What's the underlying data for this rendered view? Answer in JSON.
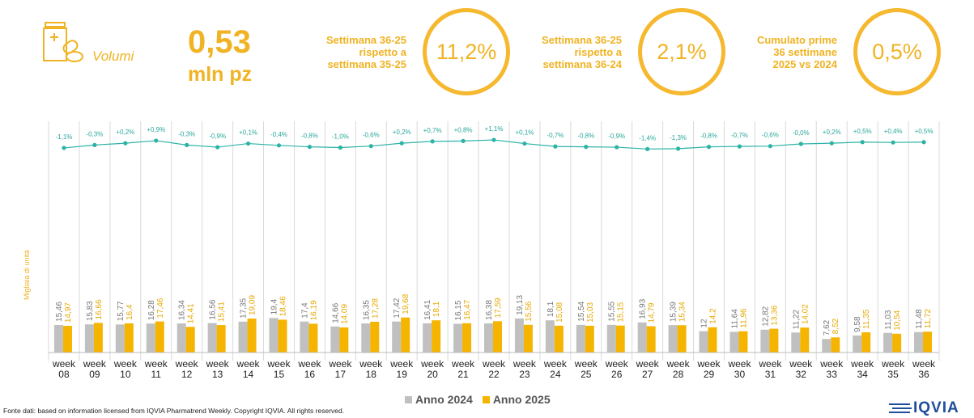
{
  "header": {
    "section_label": "Volumi",
    "total_value": "0,53",
    "total_unit": "mln pz",
    "kpis": [
      {
        "label_lines": [
          "Settimana 36-25",
          "rispetto a",
          "settimana 35-25"
        ],
        "value": "11,2%"
      },
      {
        "label_lines": [
          "Settimana 36-25",
          "rispetto a",
          "settimana 36-24"
        ],
        "value": "2,1%"
      },
      {
        "label_lines": [
          "Cumulato prime",
          "36 settimane",
          "2025 vs 2024"
        ],
        "value": "0,5%"
      }
    ]
  },
  "colors": {
    "accent": "#f0b323",
    "bar_2024": "#c0c0c0",
    "bar_2025": "#f5b400",
    "line": "#2bb3a6"
  },
  "chart_data": {
    "type": "bar",
    "ylabel": "Migliaia di unità",
    "categories": [
      "week 08",
      "week 09",
      "week 10",
      "week 11",
      "week 12",
      "week 13",
      "week 14",
      "week 15",
      "week 16",
      "week 17",
      "week 18",
      "week 19",
      "week 20",
      "week 21",
      "week 22",
      "week 23",
      "week 24",
      "week 25",
      "week 26",
      "week 27",
      "week 28",
      "week 29",
      "week 30",
      "week 31",
      "week 32",
      "week 33",
      "week 34",
      "week 35",
      "week 36"
    ],
    "series": [
      {
        "name": "Anno 2024",
        "labels": [
          "15,46",
          "15,83",
          "15,77",
          "16,28",
          "16,34",
          "16,56",
          "17,35",
          "19,4",
          "17,4",
          "14,66",
          "16,35",
          "17,42",
          "16,41",
          "16,15",
          "16,38",
          "19,13",
          "18,1",
          "15,54",
          "15,55",
          "16,93",
          "15,39",
          "12",
          "11,64",
          "12,82",
          "11,22",
          "7,62",
          "9,58",
          "11,03",
          "11,48"
        ],
        "values": [
          15.46,
          15.83,
          15.77,
          16.28,
          16.34,
          16.56,
          17.35,
          19.4,
          17.4,
          14.66,
          16.35,
          17.42,
          16.41,
          16.15,
          16.38,
          19.13,
          18.1,
          15.54,
          15.55,
          16.93,
          15.39,
          12,
          11.64,
          12.82,
          11.22,
          7.62,
          9.58,
          11.03,
          11.48
        ]
      },
      {
        "name": "Anno 2025",
        "labels": [
          "14,97",
          "16,66",
          "16,4",
          "17,46",
          "14,41",
          "15,41",
          "19,09",
          "18,46",
          "16,19",
          "14,09",
          "17,28",
          "19,68",
          "18,1",
          "16,47",
          "17,59",
          "15,56",
          "15,08",
          "15,03",
          "15,15",
          "14,79",
          "15,34",
          "14,2",
          "11,96",
          "13,36",
          "14,02",
          "8,52",
          "11,35",
          "10,54",
          "11,72"
        ],
        "values": [
          14.97,
          16.66,
          16.4,
          17.46,
          14.41,
          15.41,
          19.09,
          18.46,
          16.19,
          14.09,
          17.28,
          19.68,
          18.1,
          16.47,
          17.59,
          15.56,
          15.08,
          15.03,
          15.15,
          14.79,
          15.34,
          14.2,
          11.96,
          13.36,
          14.02,
          8.52,
          11.35,
          10.54,
          11.72
        ]
      }
    ],
    "cumulative_change": {
      "labels": [
        "-1,1%",
        "-0,3%",
        "+0,2%",
        "+0,9%",
        "-0,3%",
        "-0,9%",
        "+0,1%",
        "-0,4%",
        "-0,8%",
        "-1,0%",
        "-0,6%",
        "+0,2%",
        "+0,7%",
        "+0,8%",
        "+1,1%",
        "+0,1%",
        "-0,7%",
        "-0,8%",
        "-0,9%",
        "-1,4%",
        "-1,3%",
        "-0,8%",
        "-0,7%",
        "-0,6%",
        "-0,0%",
        "+0,2%",
        "+0,5%",
        "+0,4%",
        "+0,5%"
      ],
      "values": [
        -1.1,
        -0.3,
        0.2,
        0.9,
        -0.3,
        -0.9,
        0.1,
        -0.4,
        -0.8,
        -1.0,
        -0.6,
        0.2,
        0.7,
        0.8,
        1.1,
        0.1,
        -0.7,
        -0.8,
        -0.9,
        -1.4,
        -1.3,
        -0.8,
        -0.7,
        -0.6,
        -0.0,
        0.2,
        0.5,
        0.4,
        0.5
      ]
    },
    "legend_position": "bottom",
    "grid": false
  },
  "footer": {
    "source": "Fonte dati: based on information licensed from IQVIA Pharmatrend Weekly. Copyright IQVIA. All rights reserved.",
    "logo": "IQVIA"
  }
}
